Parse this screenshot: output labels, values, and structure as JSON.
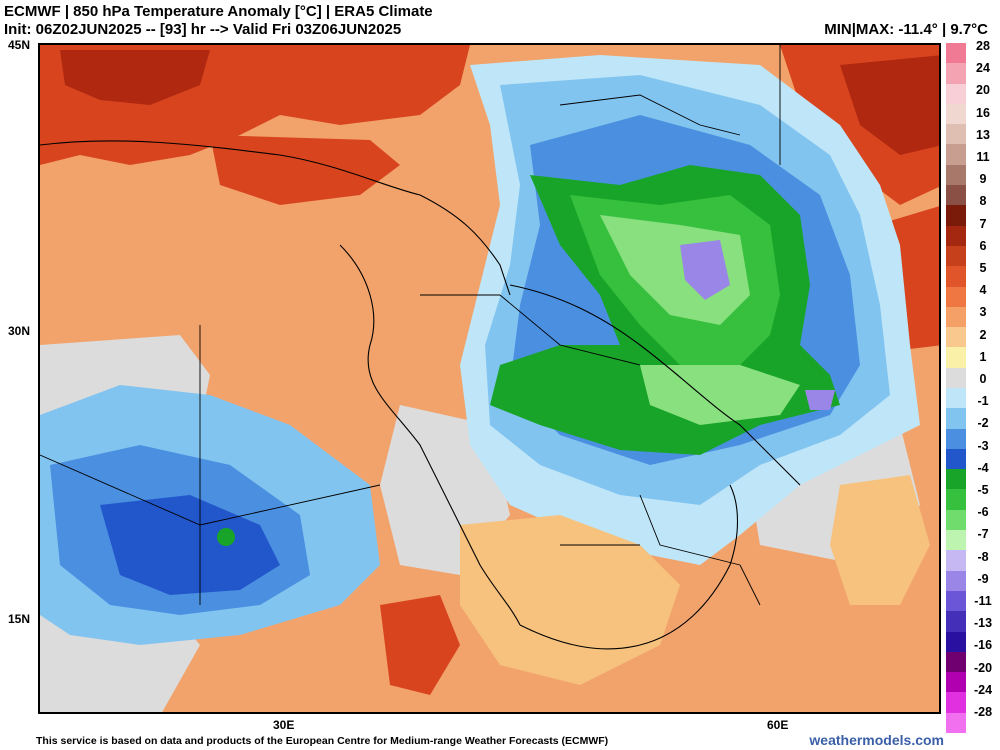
{
  "header": {
    "line1": "ECMWF | 850 hPa Temperature Anomaly [°C] | ERA5 Climate",
    "line2": "Init: 06Z02JUN2025 -- [93] hr --> Valid Fri 03Z06JUN2025",
    "minmax": "MIN|MAX: -11.4° | 9.7°C"
  },
  "axes": {
    "lat_labels": [
      "45N",
      "30N",
      "15N"
    ],
    "lon_labels": [
      "30E",
      "60E"
    ]
  },
  "legend": {
    "labels": [
      "28",
      "24",
      "20",
      "16",
      "13",
      "11",
      "9",
      "8",
      "7",
      "6",
      "5",
      "4",
      "3",
      "2",
      "1",
      "0",
      "-1",
      "-2",
      "-3",
      "-4",
      "-5",
      "-6",
      "-7",
      "-8",
      "-9",
      "-11",
      "-13",
      "-16",
      "-20",
      "-24",
      "-28"
    ],
    "colors": [
      "#f07a93",
      "#f4a3b3",
      "#f8cfd7",
      "#f0d8d0",
      "#dfbfb2",
      "#c79e90",
      "#a8786b",
      "#8a4f45",
      "#7a1a08",
      "#a42810",
      "#c7401c",
      "#e0552a",
      "#ee7742",
      "#f4a066",
      "#f8c88e",
      "#fbf0a8",
      "#dcdcdc",
      "#bfe6f8",
      "#82c4f0",
      "#4a8fe0",
      "#2257cc",
      "#18a428",
      "#36c03e",
      "#70dc6e",
      "#bcf4b0",
      "#c6b8f2",
      "#9a86e6",
      "#6a56d6",
      "#4430b8",
      "#2a10a0",
      "#700070",
      "#b000b0",
      "#e030e0",
      "#f070f0"
    ]
  },
  "map": {
    "colors": {
      "warm_base": "#f2a36b",
      "very_warm": "#d8441e",
      "hot": "#b02810",
      "mild": "#f6c27e",
      "neutral": "#dcdcdc",
      "cool_light": "#bfe6f8",
      "cool": "#82c4f0",
      "cold": "#4a8fe0",
      "colder": "#2257cc",
      "green": "#18a428",
      "green_mid": "#36c03e",
      "green_light": "#88e07e",
      "purple": "#9a86e6"
    }
  },
  "footer": {
    "credit": "This service is based on data and products of the European Centre for Medium-range Weather Forecasts (ECMWF)",
    "site": "weathermodels.com"
  }
}
